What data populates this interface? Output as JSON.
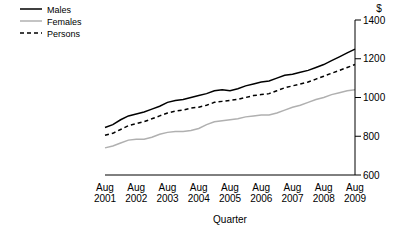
{
  "chart_data": {
    "type": "line",
    "x_label": "Quarter",
    "y_label": "$",
    "categories": [
      "Aug 2001",
      null,
      null,
      null,
      "Aug 2002",
      null,
      null,
      null,
      "Aug 2003",
      null,
      null,
      null,
      "Aug 2004",
      null,
      null,
      null,
      "Aug 2005",
      null,
      null,
      null,
      "Aug 2006",
      null,
      null,
      null,
      "Aug 2007",
      null,
      null,
      null,
      "Aug 2008",
      null,
      null,
      null,
      "Aug 2009"
    ],
    "series": [
      {
        "name": "Males",
        "color": "#000000",
        "line_style": "solid",
        "values": [
          845,
          860,
          885,
          905,
          915,
          925,
          940,
          955,
          975,
          985,
          990,
          1000,
          1010,
          1020,
          1035,
          1040,
          1035,
          1045,
          1060,
          1070,
          1080,
          1085,
          1100,
          1115,
          1120,
          1130,
          1140,
          1155,
          1170,
          1190,
          1210,
          1230,
          1250
        ]
      },
      {
        "name": "Females",
        "color": "#b0b0b0",
        "line_style": "solid",
        "values": [
          740,
          750,
          765,
          780,
          785,
          785,
          795,
          810,
          820,
          825,
          825,
          830,
          840,
          860,
          875,
          880,
          885,
          890,
          900,
          905,
          910,
          910,
          920,
          935,
          950,
          960,
          975,
          990,
          1000,
          1015,
          1025,
          1035,
          1040
        ]
      },
      {
        "name": "Persons",
        "color": "#000000",
        "line_style": "dashed",
        "values": [
          805,
          815,
          835,
          855,
          865,
          875,
          890,
          905,
          920,
          930,
          935,
          945,
          950,
          960,
          975,
          980,
          985,
          990,
          1000,
          1010,
          1015,
          1020,
          1035,
          1050,
          1060,
          1070,
          1080,
          1095,
          1110,
          1125,
          1140,
          1155,
          1170
        ]
      }
    ],
    "ylim": [
      600,
      1400
    ],
    "yticks": [
      600,
      800,
      1000,
      1200,
      1400
    ],
    "legend": "top-left",
    "grid": false
  }
}
